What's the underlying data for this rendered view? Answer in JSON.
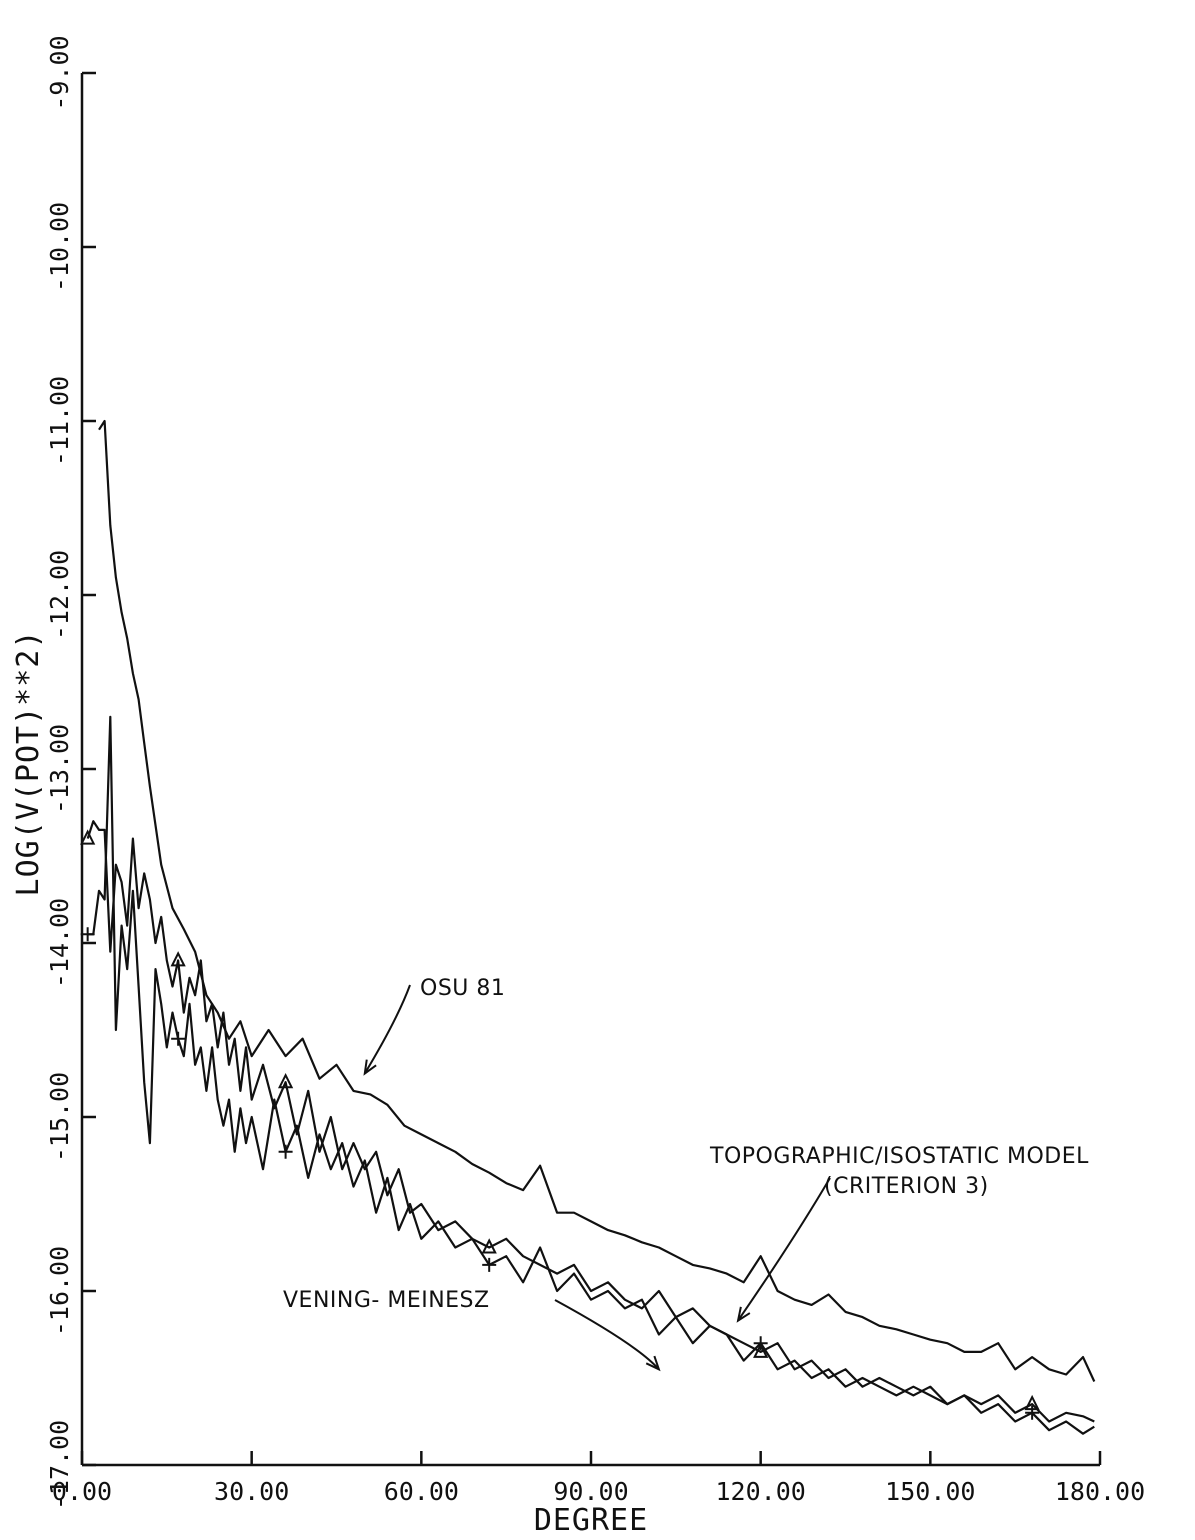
{
  "chart_data": {
    "type": "line",
    "xlabel": "DEGREE",
    "ylabel": "LOG(V(POT)**2)",
    "xlim": [
      0,
      180
    ],
    "ylim": [
      -17,
      -9
    ],
    "x_ticks": [
      "0.00",
      "30.00",
      "60.00",
      "90.00",
      "120.00",
      "150.00",
      "180.00"
    ],
    "y_ticks": [
      "-17.00",
      "-16.00",
      "-15.00",
      "-14.00",
      "-13.00",
      "-12.00",
      "-11.00",
      "-10.00",
      "-9.00"
    ],
    "grid": false,
    "colors": {
      "line": "#111111",
      "background": "#ffffff"
    },
    "annotations": [
      {
        "text": "OSU 81",
        "target_x": 50,
        "target_y": -14.75
      },
      {
        "text": "TOPOGRAPHIC/ISOSTATIC MODEL",
        "target_x": 116,
        "target_y": -16.17
      },
      {
        "text": "(CRITERION 3)",
        "target_x": 116,
        "target_y": -16.17
      },
      {
        "text": "VENING- MEINESZ",
        "target_x": 102,
        "target_y": -16.45
      }
    ],
    "series": [
      {
        "x": [
          3,
          4,
          5,
          6,
          7,
          8,
          9,
          10,
          11,
          12,
          14,
          16,
          18,
          20,
          22,
          24,
          26,
          28,
          30,
          33,
          36,
          39,
          42,
          45,
          48,
          51,
          54,
          57,
          60,
          63,
          66,
          69,
          72,
          75,
          78,
          81,
          84,
          87,
          90,
          93,
          96,
          99,
          102,
          105,
          108,
          111,
          114,
          117,
          120,
          123,
          126,
          129,
          132,
          135,
          138,
          141,
          144,
          147,
          150,
          153,
          156,
          159,
          162,
          165,
          168,
          171,
          174,
          177,
          179
        ],
        "values": [
          -11.05,
          -11.0,
          -11.6,
          -11.9,
          -12.1,
          -12.25,
          -12.45,
          -12.6,
          -12.85,
          -13.1,
          -13.55,
          -13.8,
          -13.92,
          -14.05,
          -14.3,
          -14.4,
          -14.55,
          -14.45,
          -14.65,
          -14.5,
          -14.65,
          -14.55,
          -14.78,
          -14.7,
          -14.85,
          -14.87,
          -14.93,
          -15.05,
          -15.1,
          -15.15,
          -15.2,
          -15.27,
          -15.32,
          -15.38,
          -15.42,
          -15.28,
          -15.55,
          -15.55,
          -15.6,
          -15.65,
          -15.68,
          -15.72,
          -15.75,
          -15.8,
          -15.85,
          -15.87,
          -15.9,
          -15.95,
          -15.8,
          -16.0,
          -16.05,
          -16.08,
          -16.02,
          -16.12,
          -16.15,
          -16.2,
          -16.22,
          -16.25,
          -16.28,
          -16.3,
          -16.35,
          -16.35,
          -16.3,
          -16.45,
          -16.38,
          -16.45,
          -16.48,
          -16.38,
          -16.52
        ]
      },
      {
        "x": [
          1,
          2,
          3,
          4,
          5,
          6,
          7,
          8,
          9,
          10,
          11,
          12,
          13,
          14,
          15,
          16,
          17,
          18,
          19,
          20,
          21,
          22,
          23,
          24,
          25,
          26,
          27,
          28,
          29,
          30,
          32,
          34,
          36,
          38,
          40,
          42,
          44,
          46,
          48,
          50,
          52,
          54,
          56,
          58,
          60,
          63,
          66,
          69,
          72,
          75,
          78,
          81,
          84,
          87,
          90,
          93,
          96,
          99,
          102,
          105,
          108,
          111,
          114,
          117,
          120,
          123,
          126,
          129,
          132,
          135,
          138,
          141,
          144,
          147,
          150,
          153,
          156,
          159,
          162,
          165,
          168,
          171,
          174,
          177,
          179
        ],
        "values": [
          -13.95,
          -13.95,
          -13.7,
          -13.75,
          -12.7,
          -14.5,
          -13.9,
          -14.15,
          -13.7,
          -14.25,
          -14.8,
          -15.15,
          -14.15,
          -14.35,
          -14.6,
          -14.4,
          -14.55,
          -14.65,
          -14.35,
          -14.7,
          -14.6,
          -14.85,
          -14.6,
          -14.9,
          -15.05,
          -14.9,
          -15.2,
          -14.95,
          -15.15,
          -15.0,
          -15.3,
          -14.9,
          -15.2,
          -15.05,
          -15.35,
          -15.1,
          -15.3,
          -15.15,
          -15.4,
          -15.25,
          -15.55,
          -15.35,
          -15.65,
          -15.5,
          -15.7,
          -15.6,
          -15.75,
          -15.7,
          -15.85,
          -15.8,
          -15.95,
          -15.75,
          -16.0,
          -15.9,
          -16.05,
          -16.0,
          -16.1,
          -16.05,
          -16.25,
          -16.15,
          -16.3,
          -16.2,
          -16.25,
          -16.4,
          -16.3,
          -16.45,
          -16.4,
          -16.5,
          -16.45,
          -16.55,
          -16.5,
          -16.55,
          -16.6,
          -16.55,
          -16.6,
          -16.65,
          -16.6,
          -16.7,
          -16.65,
          -16.75,
          -16.7,
          -16.8,
          -16.75,
          -16.82,
          -16.78
        ]
      },
      {
        "x": [
          1,
          2,
          3,
          4,
          5,
          6,
          7,
          8,
          9,
          10,
          11,
          12,
          13,
          14,
          15,
          16,
          17,
          18,
          19,
          20,
          21,
          22,
          23,
          24,
          25,
          26,
          27,
          28,
          29,
          30,
          32,
          34,
          36,
          38,
          40,
          42,
          44,
          46,
          48,
          50,
          52,
          54,
          56,
          58,
          60,
          63,
          66,
          69,
          72,
          75,
          78,
          81,
          84,
          87,
          90,
          93,
          96,
          99,
          102,
          105,
          108,
          111,
          114,
          117,
          120,
          123,
          126,
          129,
          132,
          135,
          138,
          141,
          144,
          147,
          150,
          153,
          156,
          159,
          162,
          165,
          168,
          171,
          174,
          177,
          179
        ],
        "values": [
          -13.4,
          -13.3,
          -13.35,
          -13.35,
          -14.05,
          -13.55,
          -13.65,
          -13.9,
          -13.4,
          -13.8,
          -13.6,
          -13.75,
          -14.0,
          -13.85,
          -14.1,
          -14.25,
          -14.1,
          -14.4,
          -14.2,
          -14.3,
          -14.1,
          -14.45,
          -14.35,
          -14.6,
          -14.4,
          -14.7,
          -14.55,
          -14.85,
          -14.6,
          -14.9,
          -14.7,
          -14.95,
          -14.8,
          -15.1,
          -14.85,
          -15.2,
          -15.0,
          -15.3,
          -15.15,
          -15.3,
          -15.2,
          -15.45,
          -15.3,
          -15.55,
          -15.5,
          -15.65,
          -15.6,
          -15.7,
          -15.75,
          -15.7,
          -15.8,
          -15.85,
          -15.9,
          -15.85,
          -16.0,
          -15.95,
          -16.05,
          -16.1,
          -16.0,
          -16.15,
          -16.1,
          -16.2,
          -16.25,
          -16.3,
          -16.35,
          -16.3,
          -16.45,
          -16.4,
          -16.5,
          -16.45,
          -16.55,
          -16.5,
          -16.55,
          -16.6,
          -16.55,
          -16.65,
          -16.6,
          -16.65,
          -16.6,
          -16.7,
          -16.65,
          -16.75,
          -16.7,
          -16.72,
          -16.75
        ]
      }
    ]
  }
}
